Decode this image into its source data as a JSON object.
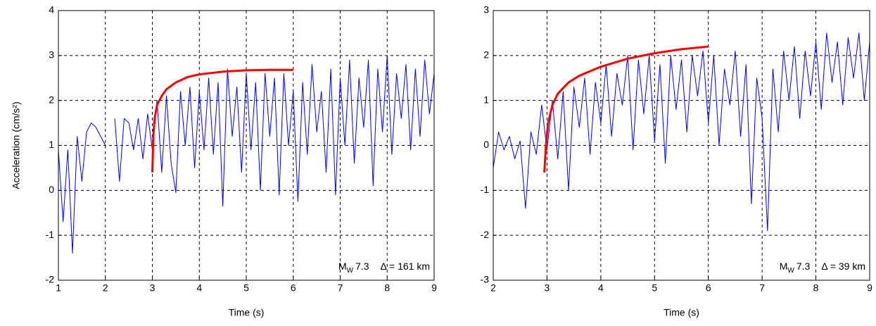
{
  "chart_data": [
    {
      "type": "line",
      "ylabel": "Acceleration (cm/s²)",
      "xlabel": "Time (s)",
      "annotation": {
        "symbol": "M",
        "subscript": "W",
        "magnitude": "7.3",
        "distance": "Δ = 161 km"
      },
      "xlim": [
        1,
        9
      ],
      "xticks": [
        1,
        2,
        3,
        4,
        5,
        6,
        7,
        8,
        9
      ],
      "ylim": [
        -2,
        4
      ],
      "yticks": [
        -2,
        -1,
        0,
        1,
        2,
        3,
        4
      ],
      "grid": true,
      "series": [
        {
          "color": "#0000ff",
          "linewidth": 1,
          "x": [
            1.0,
            1.1,
            1.2,
            1.3,
            1.4,
            1.5,
            1.6,
            1.7,
            1.8,
            1.9,
            2.0,
            2.1,
            2.2,
            2.3,
            2.4,
            2.5,
            2.6,
            2.7,
            2.8,
            2.9,
            3.0,
            3.1,
            3.2,
            3.3,
            3.4,
            3.5,
            3.6,
            3.7,
            3.8,
            3.9,
            4.0,
            4.1,
            4.2,
            4.3,
            4.4,
            4.5,
            4.6,
            4.7,
            4.8,
            4.9,
            5.0,
            5.1,
            5.2,
            5.3,
            5.4,
            5.5,
            5.6,
            5.7,
            5.8,
            5.9,
            6.0,
            6.1,
            6.2,
            6.3,
            6.4,
            6.5,
            6.6,
            6.7,
            6.8,
            6.9,
            7.0,
            7.1,
            7.2,
            7.3,
            7.4,
            7.5,
            7.6,
            7.7,
            7.8,
            7.9,
            8.0,
            8.1,
            8.2,
            8.3,
            8.4,
            8.5,
            8.6,
            8.7,
            8.8,
            8.9,
            9.0
          ],
          "values": [
            0.9,
            -0.7,
            0.9,
            -1.4,
            1.2,
            0.2,
            1.3,
            1.5,
            1.4,
            1.2,
            1.0,
            null,
            1.6,
            0.2,
            1.6,
            1.5,
            0.9,
            1.6,
            0.7,
            1.7,
            0.9,
            2.0,
            0.4,
            2.1,
            0.6,
            -0.05,
            2.2,
            1.0,
            2.3,
            0.5,
            2.2,
            0.9,
            2.5,
            0.8,
            2.4,
            -0.35,
            2.7,
            1.2,
            2.3,
            0.4,
            2.6,
            0.9,
            2.4,
            0.0,
            2.6,
            1.2,
            2.5,
            -0.1,
            2.6,
            1.0,
            2.2,
            -0.25,
            2.4,
            0.8,
            2.8,
            1.3,
            2.2,
            0.4,
            2.7,
            -0.1,
            2.5,
            1.0,
            2.9,
            0.6,
            2.5,
            1.4,
            2.9,
            0.1,
            2.7,
            1.3,
            3.0,
            0.8,
            2.6,
            1.6,
            2.8,
            0.9,
            2.7,
            1.2,
            2.9,
            1.7,
            2.6
          ]
        },
        {
          "color": "#ff0000",
          "linewidth": 3,
          "x": [
            3.0,
            3.02,
            3.05,
            3.1,
            3.2,
            3.3,
            3.5,
            3.75,
            4.0,
            4.5,
            5.0,
            5.5,
            6.0
          ],
          "values": [
            0.4,
            1.2,
            1.6,
            1.9,
            2.1,
            2.25,
            2.4,
            2.52,
            2.58,
            2.64,
            2.67,
            2.68,
            2.68
          ]
        }
      ]
    },
    {
      "type": "line",
      "xlabel": "Time (s)",
      "annotation": {
        "symbol": "M",
        "subscript": "W",
        "magnitude": "7.3",
        "distance": "Δ = 39 km"
      },
      "xlim": [
        2,
        9
      ],
      "xticks": [
        2,
        3,
        4,
        5,
        6,
        7,
        8,
        9
      ],
      "ylim": [
        -3,
        3
      ],
      "yticks": [
        -3,
        -2,
        -1,
        0,
        1,
        2,
        3
      ],
      "grid": true,
      "series": [
        {
          "color": "#0000ff",
          "linewidth": 1,
          "x": [
            2.0,
            2.1,
            2.2,
            2.3,
            2.4,
            2.5,
            2.6,
            2.7,
            2.8,
            2.9,
            3.0,
            3.1,
            3.2,
            3.3,
            3.4,
            3.5,
            3.6,
            3.7,
            3.8,
            3.9,
            4.0,
            4.1,
            4.2,
            4.3,
            4.4,
            4.5,
            4.6,
            4.7,
            4.8,
            4.9,
            5.0,
            5.1,
            5.2,
            5.3,
            5.4,
            5.5,
            5.6,
            5.7,
            5.8,
            5.9,
            6.0,
            6.1,
            6.2,
            6.3,
            6.4,
            6.5,
            6.6,
            6.7,
            6.8,
            6.9,
            7.0,
            7.1,
            7.2,
            7.3,
            7.4,
            7.5,
            7.6,
            7.7,
            7.8,
            7.9,
            8.0,
            8.1,
            8.2,
            8.3,
            8.4,
            8.5,
            8.6,
            8.7,
            8.8,
            8.9,
            9.0
          ],
          "values": [
            -0.5,
            0.3,
            -0.1,
            0.2,
            -0.3,
            0.1,
            -1.4,
            0.3,
            -0.2,
            0.9,
            -0.1,
            1.0,
            -0.3,
            1.2,
            -1.0,
            1.3,
            0.4,
            1.5,
            -0.2,
            1.4,
            0.5,
            1.8,
            0.2,
            1.6,
            0.9,
            2.0,
            -0.1,
            1.9,
            0.7,
            2.0,
            0.1,
            1.8,
            -0.4,
            2.0,
            0.8,
            1.9,
            0.3,
            2.0,
            1.1,
            2.1,
            0.5,
            2.0,
            0.0,
            1.7,
            0.9,
            2.1,
            0.2,
            1.8,
            -1.3,
            1.5,
            0.6,
            -1.9,
            1.7,
            0.3,
            2.1,
            1.0,
            2.2,
            0.6,
            2.1,
            1.1,
            2.3,
            0.8,
            2.5,
            1.4,
            2.3,
            0.9,
            2.4,
            1.5,
            2.5,
            1.0,
            2.3
          ]
        },
        {
          "color": "#ff0000",
          "linewidth": 3,
          "x": [
            2.95,
            2.98,
            3.02,
            3.1,
            3.2,
            3.4,
            3.6,
            4.0,
            4.5,
            5.0,
            5.5,
            6.0
          ],
          "values": [
            -0.6,
            0.0,
            0.5,
            0.9,
            1.15,
            1.4,
            1.55,
            1.75,
            1.93,
            2.05,
            2.14,
            2.2
          ]
        }
      ]
    }
  ]
}
